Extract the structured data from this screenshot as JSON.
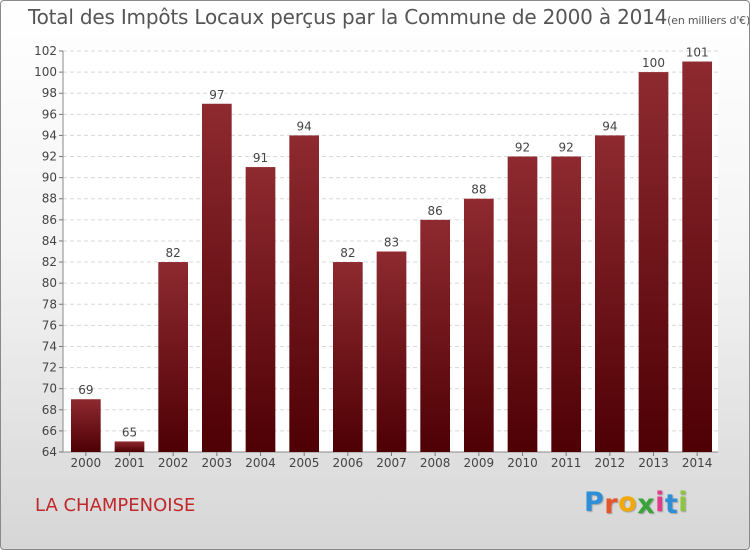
{
  "chart_data": {
    "type": "bar",
    "title": "Total des Impôts Locaux perçus par la Commune de 2000 à 2014",
    "unit": "(en milliers d'€)",
    "categories": [
      "2000",
      "2001",
      "2002",
      "2003",
      "2004",
      "2005",
      "2006",
      "2007",
      "2008",
      "2009",
      "2010",
      "2011",
      "2012",
      "2013",
      "2014"
    ],
    "values": [
      69,
      65,
      82,
      97,
      91,
      94,
      82,
      83,
      86,
      88,
      92,
      92,
      94,
      100,
      101
    ],
    "ylim": [
      64,
      102
    ],
    "yticks": [
      64,
      66,
      68,
      70,
      72,
      74,
      76,
      78,
      80,
      82,
      84,
      86,
      88,
      90,
      92,
      94,
      96,
      98,
      100,
      102
    ],
    "xlabel": "",
    "ylabel": "",
    "bar_color": "#7a1217",
    "grid": true
  },
  "footer": {
    "commune": "LA CHAMPENOISE",
    "logo": {
      "letters": [
        "P",
        "r",
        "o",
        "x",
        "i",
        "t",
        "i"
      ],
      "colors": [
        "#2f8fd6",
        "#e8542a",
        "#f2a900",
        "#3aa33a",
        "#e23b8b",
        "#2f8fd6",
        "#8cc63f"
      ]
    }
  }
}
